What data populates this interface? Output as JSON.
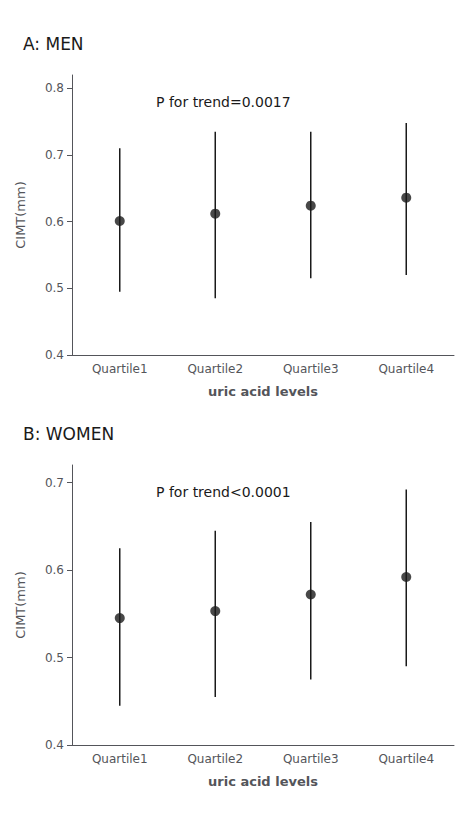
{
  "chart_data": [
    {
      "type": "scatter",
      "title": "A: MEN",
      "annotation": "P for trend=0.0017",
      "categories": [
        "Quartile1",
        "Quartile2",
        "Quartile3",
        "Quartile4"
      ],
      "values": [
        0.601,
        0.612,
        0.624,
        0.636
      ],
      "ci_low": [
        0.495,
        0.485,
        0.515,
        0.52
      ],
      "ci_high": [
        0.71,
        0.735,
        0.735,
        0.748
      ],
      "ylim": [
        0.4,
        0.82
      ],
      "yticks": [
        0.4,
        0.5,
        0.6,
        0.7,
        0.8
      ],
      "xlabel": "uric acid levels",
      "ylabel": "CIMT(mm)",
      "color": "#1a1a1a",
      "grid": false
    },
    {
      "type": "scatter",
      "title": "B: WOMEN",
      "annotation": "P for trend<0.0001",
      "categories": [
        "Quartile1",
        "Quartile2",
        "Quartile3",
        "Quartile4"
      ],
      "values": [
        0.545,
        0.553,
        0.572,
        0.592
      ],
      "ci_low": [
        0.445,
        0.455,
        0.475,
        0.49
      ],
      "ci_high": [
        0.625,
        0.645,
        0.655,
        0.692
      ],
      "ylim": [
        0.4,
        0.72
      ],
      "yticks": [
        0.4,
        0.5,
        0.6,
        0.7
      ],
      "xlabel": "uric acid levels",
      "ylabel": "CIMT(mm)",
      "color": "#1a1a1a",
      "grid": false
    }
  ]
}
